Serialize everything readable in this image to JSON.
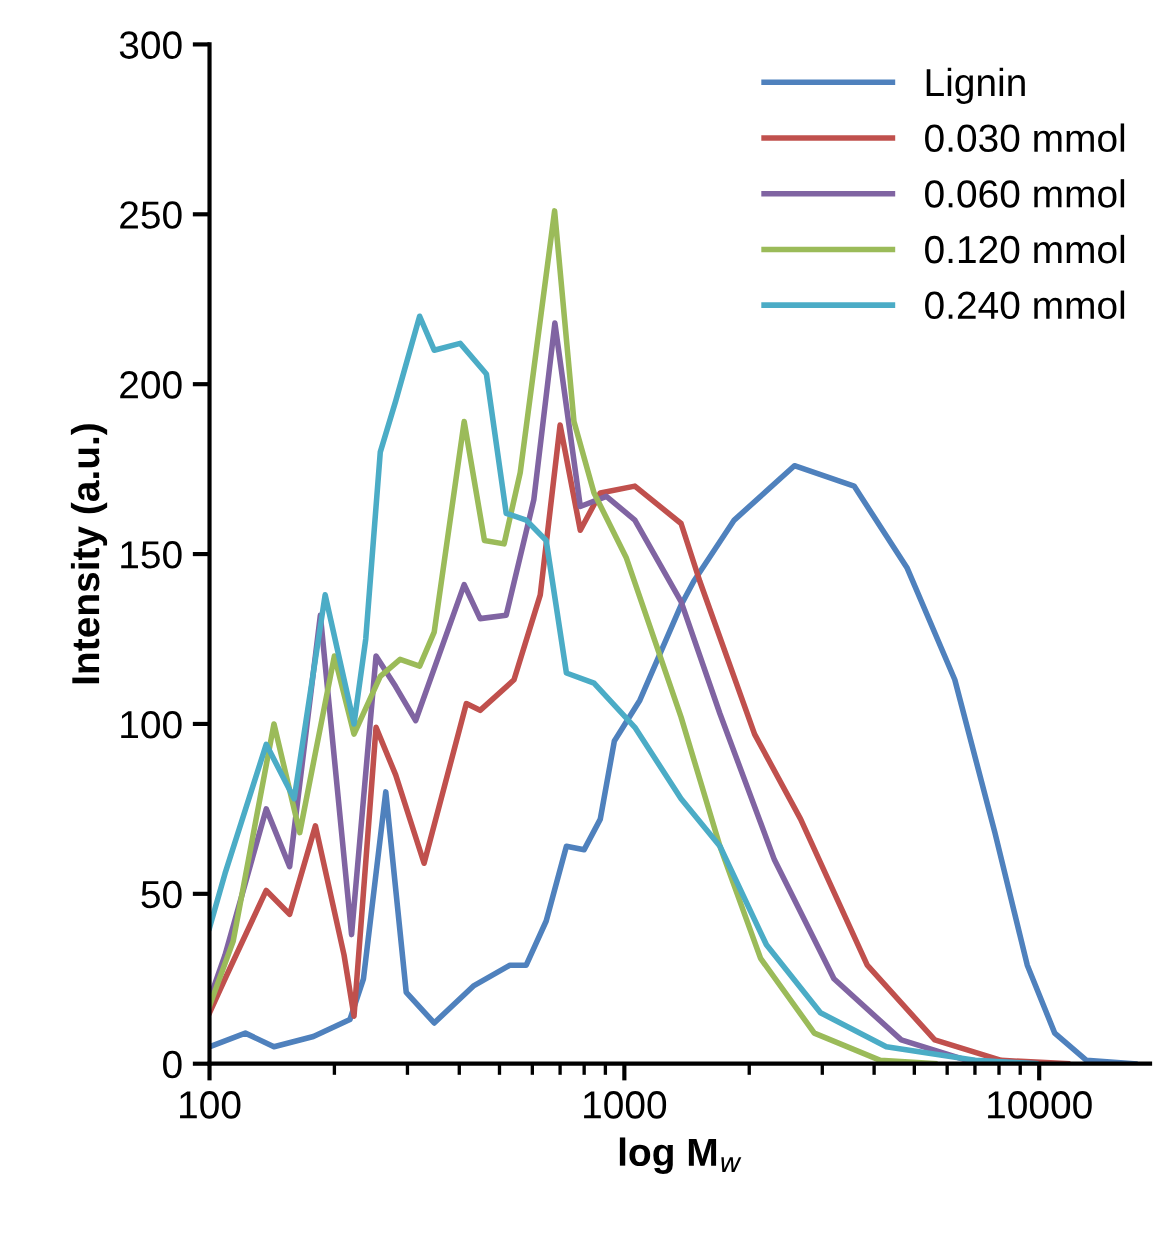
{
  "chart_data": {
    "type": "line",
    "xlabel": "log M$_{w}$",
    "ylabel": "Intensity (a.u.)",
    "log": "x",
    "legend": "top right",
    "grid": false,
    "xlim": [
      100,
      18500
    ],
    "xticks": [
      100,
      1000,
      10000
    ],
    "ylim": [
      0,
      300
    ],
    "yticks": [
      0,
      50,
      100,
      150,
      200,
      250,
      300
    ],
    "series": [
      {
        "name": "Lignin",
        "color": "#4f81bd",
        "x": [
          100,
          122,
          143,
          178,
          218,
          235,
          266,
          298,
          348,
          434,
          530,
          580,
          648,
          725,
          800,
          875,
          946,
          1090,
          1370,
          1470,
          1840,
          2570,
          3580,
          4800,
          6260,
          7820,
          9360,
          10900,
          13000,
          17000
        ],
        "values": [
          5,
          9,
          5,
          8,
          13,
          25,
          80,
          21,
          12,
          23,
          29,
          29,
          42,
          64,
          63,
          72,
          95,
          107,
          135,
          142,
          160,
          176,
          170,
          146,
          113,
          68,
          29,
          9,
          1,
          0
        ]
      },
      {
        "name": "0.030 mmol",
        "color": "#c0504d",
        "x": [
          100,
          109,
          137,
          156,
          180,
          211,
          223,
          252,
          281,
          329,
          416,
          449,
          542,
          627,
          700,
          783,
          875,
          1060,
          1370,
          1520,
          2060,
          2660,
          3850,
          5600,
          8100,
          11700
        ],
        "values": [
          15,
          25,
          51,
          44,
          70,
          32,
          14,
          99,
          85,
          59,
          106,
          104,
          113,
          138,
          188,
          157,
          168,
          170,
          159,
          142,
          97,
          72,
          29,
          7,
          1,
          0
        ]
      },
      {
        "name": "0.060 mmol",
        "color": "#8064a2",
        "x": [
          100,
          109,
          137,
          156,
          185,
          220,
          252,
          281,
          314,
          411,
          449,
          519,
          605,
          680,
          783,
          905,
          1060,
          1370,
          1700,
          2300,
          3200,
          4650,
          6700,
          9800
        ],
        "values": [
          19,
          32,
          75,
          58,
          132,
          38,
          120,
          111,
          101,
          141,
          131,
          132,
          166,
          218,
          164,
          167,
          160,
          136,
          103,
          60,
          25,
          7,
          1,
          0
        ]
      },
      {
        "name": "0.120 mmol",
        "color": "#9bbb59",
        "x": [
          100,
          114,
          143,
          165,
          200,
          223,
          258,
          288,
          321,
          348,
          411,
          460,
          513,
          561,
          679,
          756,
          845,
          1010,
          1370,
          1700,
          2130,
          2870,
          4140,
          5600
        ],
        "values": [
          17,
          36,
          100,
          68,
          120,
          97,
          114,
          119,
          117,
          127,
          189,
          154,
          153,
          174,
          251,
          189,
          168,
          149,
          102,
          64,
          31,
          9,
          1,
          0
        ]
      },
      {
        "name": "0.240 mmol",
        "color": "#4bacc6",
        "x": [
          100,
          109,
          137,
          160,
          190,
          223,
          238,
          258,
          281,
          321,
          348,
          402,
          465,
          519,
          580,
          648,
          725,
          845,
          1060,
          1370,
          1700,
          2200,
          2970,
          4280,
          7000,
          9800
        ],
        "values": [
          40,
          56,
          94,
          78,
          138,
          100,
          125,
          180,
          195,
          220,
          210,
          212,
          203,
          162,
          160,
          154,
          115,
          112,
          99,
          78,
          64,
          35,
          15,
          5,
          1,
          0
        ]
      }
    ]
  }
}
